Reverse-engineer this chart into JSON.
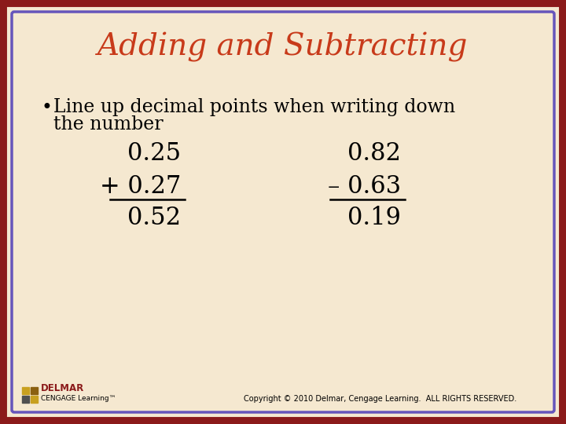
{
  "title": "Adding and Subtracting",
  "title_color": "#c83a1a",
  "title_fontsize": 28,
  "bullet_text_line1": "Line up decimal points when writing down",
  "bullet_text_line2": "the number",
  "bullet_fontsize": 17,
  "bg_color": "#f5e8d0",
  "border_color_outer": "#8b1a1a",
  "border_color_inner": "#6655bb",
  "math_fontsize": 22,
  "left_num1": "0.25",
  "left_num2": "+ 0.27",
  "left_num3": "0.52",
  "right_num1": "0.82",
  "right_num2": "– 0.63",
  "right_num3": "0.19",
  "copyright_text": "Copyright © 2010 Delmar, Cengage Learning.  ALL RIGHTS RESERVED.",
  "copyright_fontsize": 7,
  "logo_delmar": "DELMAR",
  "logo_cengage": "CENGAGE Learning™"
}
